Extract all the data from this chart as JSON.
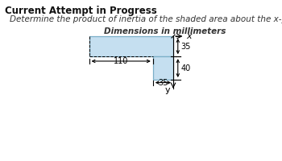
{
  "title": "Current Attempt in Progress",
  "subtitle": "Determine the product of inertia of the shaded area about the x-y axes.",
  "dim_label": "Dimensions in millimeters",
  "bg_color": "#ffffff",
  "shade_color": "#c5dff0",
  "shade_edge_color": "#7aafc8",
  "text_color": "#333333",
  "title_fontsize": 8.5,
  "subtitle_fontsize": 7.5,
  "annot_fontsize": 7,
  "dim_label_fontsize": 7.5
}
